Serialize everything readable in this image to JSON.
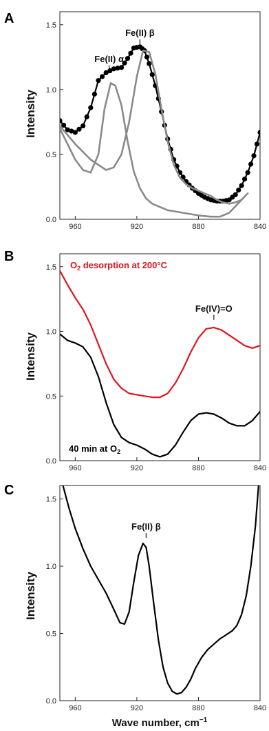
{
  "chart_data": [
    {
      "type": "line",
      "panel_label": "A",
      "ylabel": "Intensity",
      "xlim": [
        970,
        840
      ],
      "ylim": [
        0.0,
        1.6
      ],
      "xticks": [
        960,
        920,
        880,
        840
      ],
      "yticks": [
        0.0,
        0.5,
        1.0,
        1.5
      ],
      "series": [
        {
          "color": "#000000",
          "style": "line-with-markers",
          "x": [
            970,
            965,
            960,
            955,
            950,
            945,
            940,
            935,
            930,
            926,
            922,
            918,
            915,
            912,
            908,
            904,
            900,
            896,
            892,
            888,
            884,
            880,
            876,
            872,
            868,
            864,
            860,
            856,
            852,
            848,
            844,
            840
          ],
          "y": [
            0.76,
            0.69,
            0.67,
            0.72,
            0.86,
            1.07,
            1.13,
            1.16,
            1.17,
            1.24,
            1.32,
            1.33,
            1.3,
            1.2,
            1.03,
            0.83,
            0.62,
            0.46,
            0.36,
            0.29,
            0.24,
            0.2,
            0.17,
            0.15,
            0.14,
            0.14,
            0.15,
            0.19,
            0.26,
            0.36,
            0.49,
            0.67
          ]
        },
        {
          "color": "#8a8a8a",
          "style": "line",
          "x": [
            970,
            965,
            960,
            955,
            950,
            945,
            941,
            937,
            934,
            930,
            926,
            922,
            918,
            914,
            910,
            904,
            900,
            890,
            880,
            872,
            866,
            860,
            856,
            852,
            848
          ],
          "y": [
            0.7,
            0.58,
            0.46,
            0.38,
            0.36,
            0.5,
            0.85,
            1.05,
            1.03,
            0.88,
            0.6,
            0.37,
            0.24,
            0.16,
            0.12,
            0.09,
            0.07,
            0.05,
            0.03,
            0.02,
            0.02,
            0.05,
            0.1,
            0.15,
            0.2
          ]
        },
        {
          "color": "#8a8a8a",
          "style": "line",
          "x": [
            970,
            960,
            950,
            940,
            935,
            930,
            925,
            920,
            916,
            912,
            908,
            904,
            900,
            896,
            892,
            888,
            884,
            880,
            876,
            872,
            868,
            864,
            860,
            856,
            852
          ],
          "y": [
            0.72,
            0.58,
            0.46,
            0.38,
            0.4,
            0.5,
            0.75,
            1.1,
            1.3,
            1.29,
            1.12,
            0.85,
            0.6,
            0.42,
            0.32,
            0.27,
            0.24,
            0.22,
            0.2,
            0.18,
            0.15,
            0.13,
            0.12,
            0.13,
            0.15
          ]
        }
      ],
      "annotations": [
        {
          "text": "Fe(II) α",
          "x": 938,
          "y": 1.16
        },
        {
          "text": "Fe(II) β",
          "x": 918,
          "y": 1.36
        }
      ]
    },
    {
      "type": "line",
      "panel_label": "B",
      "ylabel": "Intensity",
      "xlim": [
        970,
        840
      ],
      "ylim": [
        0.0,
        1.6
      ],
      "xticks": [
        960,
        920,
        880,
        840
      ],
      "yticks": [
        0.0,
        0.5,
        1.0,
        1.5
      ],
      "series": [
        {
          "name": "O₂ desorption at 200°C",
          "color": "#e0141c",
          "style": "line",
          "x": [
            970,
            965,
            960,
            955,
            950,
            945,
            940,
            935,
            930,
            925,
            920,
            915,
            910,
            905,
            900,
            895,
            890,
            885,
            880,
            875,
            870,
            865,
            860,
            855,
            850,
            845,
            840
          ],
          "y": [
            1.47,
            1.36,
            1.26,
            1.17,
            1.05,
            0.9,
            0.75,
            0.63,
            0.56,
            0.52,
            0.51,
            0.5,
            0.49,
            0.49,
            0.52,
            0.6,
            0.71,
            0.84,
            0.95,
            1.02,
            1.03,
            1.01,
            0.97,
            0.93,
            0.89,
            0.87,
            0.89
          ]
        },
        {
          "name": "40 min at O₂",
          "color": "#000000",
          "style": "line",
          "x": [
            970,
            965,
            960,
            955,
            950,
            945,
            940,
            935,
            930,
            925,
            920,
            915,
            910,
            905,
            900,
            895,
            890,
            885,
            880,
            875,
            870,
            865,
            860,
            855,
            850,
            845,
            840
          ],
          "y": [
            0.98,
            0.93,
            0.91,
            0.88,
            0.8,
            0.65,
            0.45,
            0.28,
            0.18,
            0.14,
            0.12,
            0.09,
            0.05,
            0.03,
            0.05,
            0.12,
            0.22,
            0.31,
            0.36,
            0.37,
            0.36,
            0.33,
            0.29,
            0.27,
            0.27,
            0.31,
            0.38
          ]
        }
      ],
      "annotations": [
        {
          "text": "Fe(IV)=O",
          "x": 870,
          "y": 1.1
        }
      ],
      "legend_texts": [
        "O₂ desorption at 200°C",
        "40 min at O₂"
      ]
    },
    {
      "type": "line",
      "panel_label": "C",
      "ylabel": "Intensity",
      "xlabel": "Wave number, cm⁻¹",
      "xlim": [
        970,
        840
      ],
      "ylim": [
        0.0,
        1.6
      ],
      "xticks": [
        960,
        920,
        880,
        840
      ],
      "yticks": [
        0.0,
        0.5,
        1.0,
        1.5
      ],
      "series": [
        {
          "color": "#000000",
          "style": "line",
          "x": [
            968,
            964,
            960,
            955,
            950,
            945,
            940,
            935,
            931,
            928,
            925,
            922,
            919,
            916,
            914,
            912,
            909,
            906,
            903,
            900,
            897,
            894,
            891,
            888,
            885,
            882,
            878,
            874,
            870,
            866,
            862,
            858,
            855,
            852,
            849,
            846,
            843,
            841
          ],
          "y": [
            1.6,
            1.43,
            1.28,
            1.13,
            1.0,
            0.9,
            0.8,
            0.68,
            0.58,
            0.57,
            0.66,
            0.88,
            1.08,
            1.17,
            1.14,
            1.0,
            0.72,
            0.45,
            0.25,
            0.13,
            0.07,
            0.05,
            0.06,
            0.1,
            0.16,
            0.24,
            0.32,
            0.38,
            0.42,
            0.46,
            0.49,
            0.52,
            0.56,
            0.64,
            0.78,
            1.0,
            1.3,
            1.6
          ]
        }
      ],
      "annotations": [
        {
          "text": "Fe(II) β",
          "x": 914,
          "y": 1.22
        }
      ]
    }
  ]
}
